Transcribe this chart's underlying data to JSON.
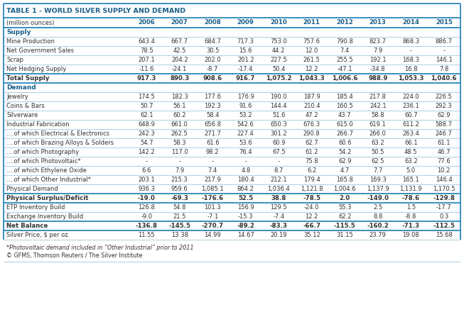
{
  "title": "TABLE 1 - WORLD SILVER SUPPLY AND DEMAND",
  "col_headers": [
    "(million ounces)",
    "2006",
    "2007",
    "2008",
    "2009",
    "2010",
    "2011",
    "2012",
    "2013",
    "2014",
    "2015"
  ],
  "rows": [
    {
      "label": "Supply",
      "values": [],
      "style": "section_header"
    },
    {
      "label": "Mine Production",
      "values": [
        "643.4",
        "667.7",
        "684.7",
        "717.3",
        "753.0",
        "757.6",
        "790.8",
        "823.7",
        "868.3",
        "886.7"
      ],
      "style": "normal"
    },
    {
      "label": "Net Government Sales",
      "values": [
        "78.5",
        "42.5",
        "30.5",
        "15.6",
        "44.2",
        "12.0",
        "7.4",
        "7.9",
        "-",
        "-"
      ],
      "style": "normal"
    },
    {
      "label": "Scrap",
      "values": [
        "207.1",
        "204.2",
        "202.0",
        "201.2",
        "227.5",
        "261.5",
        "255.5",
        "192.1",
        "168.3",
        "146.1"
      ],
      "style": "normal"
    },
    {
      "label": "Net Hedging Supply",
      "values": [
        "-11.6",
        "-24.1",
        "-8.7",
        "-17.4",
        "50.4",
        "12.2",
        "-47.1",
        "-34.8",
        "16.8",
        "7.8"
      ],
      "style": "normal"
    },
    {
      "label": "Total Supply",
      "values": [
        "917.3",
        "890.3",
        "908.6",
        "916.7",
        "1,075.2",
        "1,043.3",
        "1,006.6",
        "988.9",
        "1,053.3",
        "1,040.6"
      ],
      "style": "bold_row"
    },
    {
      "label": "Demand",
      "values": [],
      "style": "section_header"
    },
    {
      "label": "Jewelry",
      "values": [
        "174.5",
        "182.3",
        "177.6",
        "176.9",
        "190.0",
        "187.9",
        "185.4",
        "217.8",
        "224.0",
        "226.5"
      ],
      "style": "normal"
    },
    {
      "label": "Coins & Bars",
      "values": [
        "50.7",
        "56.1",
        "192.3",
        "91.6",
        "144.4",
        "210.4",
        "160.5",
        "242.1",
        "236.1",
        "292.3"
      ],
      "style": "normal"
    },
    {
      "label": "Silverware",
      "values": [
        "62.1",
        "60.2",
        "58.4",
        "53.2",
        "51.6",
        "47.2",
        "43.7",
        "58.8",
        "60.7",
        "62.9"
      ],
      "style": "normal"
    },
    {
      "label": "Industrial Fabrication",
      "values": [
        "648.9",
        "661.0",
        "656.8",
        "542.6",
        "650.3",
        "676.3",
        "615.0",
        "619.1",
        "611.2",
        "588.7"
      ],
      "style": "normal"
    },
    {
      "label": "....of which Electrical & Electronics",
      "values": [
        "242.3",
        "262.5",
        "271.7",
        "227.4",
        "301.2",
        "290.8",
        "266.7",
        "266.0",
        "263.4",
        "246.7"
      ],
      "style": "normal"
    },
    {
      "label": "....of which Brazing Alloys & Solders",
      "values": [
        "54.7",
        "58.3",
        "61.6",
        "53.6",
        "60.9",
        "62.7",
        "60.6",
        "63.2",
        "66.1",
        "61.1"
      ],
      "style": "normal"
    },
    {
      "label": "....of which Photography",
      "values": [
        "142.2",
        "117.0",
        "98.2",
        "76.4",
        "67.5",
        "61.2",
        "54.2",
        "50.5",
        "48.5",
        "46.7"
      ],
      "style": "normal"
    },
    {
      "label": "....of which Photovoltaic*",
      "values": [
        "-",
        "-",
        "-",
        "-",
        "-",
        "75.8",
        "62.9",
        "62.5",
        "63.2",
        "77.6"
      ],
      "style": "normal"
    },
    {
      "label": "....of which Ethylene Oxide",
      "values": [
        "6.6",
        "7.9",
        "7.4",
        "4.8",
        "8.7",
        "6.2",
        "4.7",
        "7.7",
        "5.0",
        "10.2"
      ],
      "style": "normal"
    },
    {
      "label": "....of which Other Industrial*",
      "values": [
        "203.1",
        "215.3",
        "217.9",
        "180.4",
        "212.1",
        "179.4",
        "165.8",
        "169.3",
        "165.1",
        "146.4"
      ],
      "style": "normal"
    },
    {
      "label": "Physical Demand",
      "values": [
        "936.3",
        "959.6",
        "1,085.1",
        "864.2",
        "1,036.4",
        "1,121.8",
        "1,004.6",
        "1,137.9",
        "1,131.9",
        "1,170.5"
      ],
      "style": "normal"
    },
    {
      "label": "Physical Surplus/Deficit",
      "values": [
        "-19.0",
        "-69.3",
        "-176.6",
        "52.5",
        "38.8",
        "-78.5",
        "2.0",
        "-149.0",
        "-78.6",
        "-129.8"
      ],
      "style": "bold_row"
    },
    {
      "label": "ETP Inventory Build",
      "values": [
        "126.8",
        "54.8",
        "101.3",
        "156.9",
        "129.5",
        "-24.0",
        "55.3",
        "2.5",
        "1.5",
        "-17.7"
      ],
      "style": "normal"
    },
    {
      "label": "Exchange Inventory Build",
      "values": [
        "-9.0",
        "21.5",
        "-7.1",
        "-15.3",
        "-7.4",
        "12.2",
        "62.2",
        "8.8",
        "-8.8",
        "0.3"
      ],
      "style": "normal"
    },
    {
      "label": "Net Balance",
      "values": [
        "-136.8",
        "-145.5",
        "-270.7",
        "-89.2",
        "-83.3",
        "-66.7",
        "-115.5",
        "-160.2",
        "-71.3",
        "-112.5"
      ],
      "style": "bold_row"
    },
    {
      "label": "Silver Price, $ per oz.",
      "values": [
        "11.55",
        "13.38",
        "14.99",
        "14.67",
        "20.19",
        "35.12",
        "31.15",
        "23.79",
        "19.08",
        "15.68"
      ],
      "style": "normal"
    }
  ],
  "footnote1": "*Photovoltaic demand included in “Other Industrial” prior to 2011",
  "footnote2": "© GFMS, Thomson Reuters / The Silver Institute",
  "title_color": "#1a5f8a",
  "col_header_color": "#1a5f8a",
  "section_header_color": "#1a5f8a",
  "border_color_thick": "#3a8fc0",
  "border_color_thin": "#a0c8dc",
  "text_color": "#333333",
  "bg_color": "#ffffff"
}
